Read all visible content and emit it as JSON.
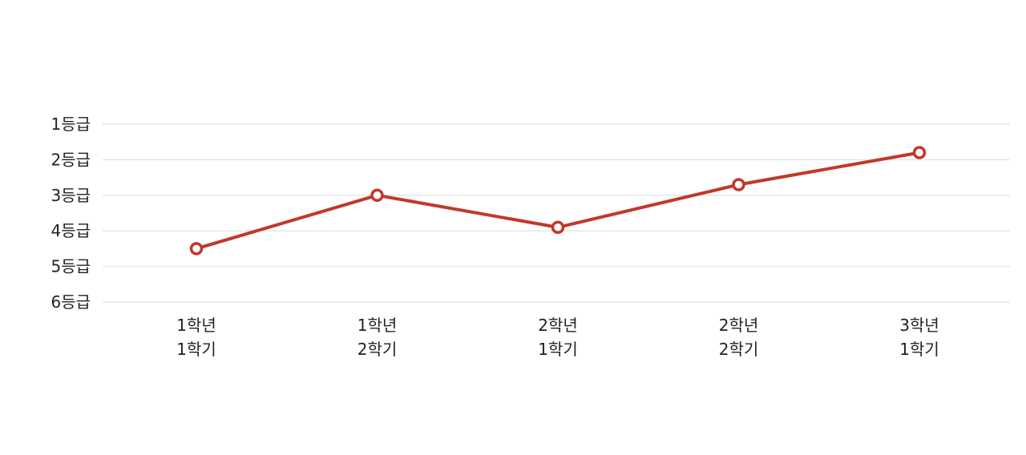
{
  "chart_data": {
    "type": "line",
    "title": "",
    "xlabel": "",
    "ylabel": "",
    "categories": [
      [
        "1학년",
        "1학기"
      ],
      [
        "1학년",
        "2학기"
      ],
      [
        "2학년",
        "1학기"
      ],
      [
        "2학년",
        "2학기"
      ],
      [
        "3학년",
        "1학기"
      ]
    ],
    "y_ticks": [
      {
        "value": 1,
        "label": "1등급"
      },
      {
        "value": 2,
        "label": "2등급"
      },
      {
        "value": 3,
        "label": "3등급"
      },
      {
        "value": 4,
        "label": "4등급"
      },
      {
        "value": 5,
        "label": "5등급"
      },
      {
        "value": 6,
        "label": "6등급"
      }
    ],
    "ylim": [
      1,
      6
    ],
    "y_inverted": true,
    "grid": true,
    "legend": "none",
    "series": [
      {
        "values": [
          4.5,
          3.0,
          3.9,
          2.7,
          1.8
        ],
        "color": "#c0392b"
      }
    ]
  }
}
